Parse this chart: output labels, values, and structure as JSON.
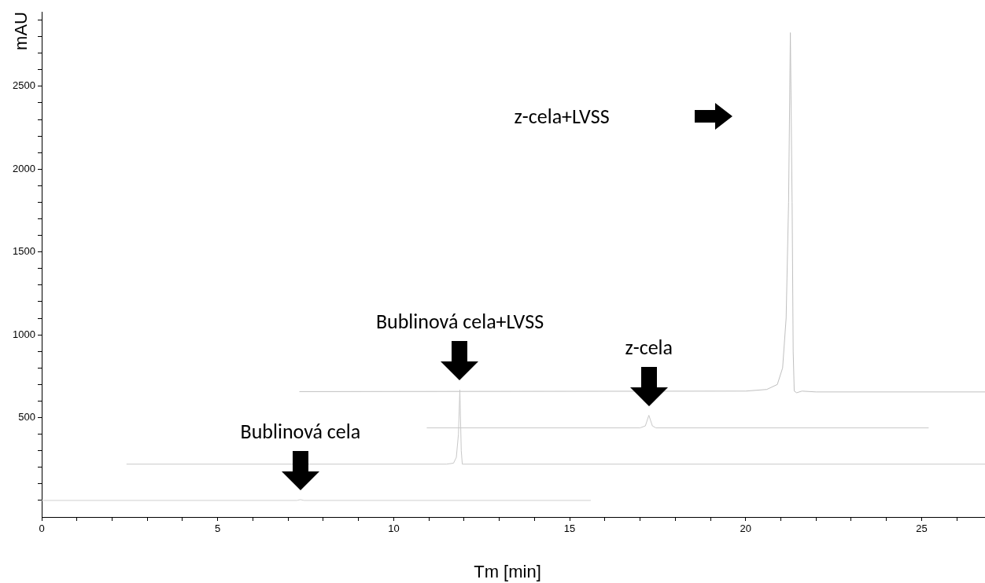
{
  "chart_data": {
    "type": "line",
    "xlabel": "Tm [min]",
    "ylabel": "mAU",
    "xlim": [
      0,
      26.8
    ],
    "ylim": [
      -100,
      2950
    ],
    "xticks": [
      0,
      {
        "value": 1,
        "label": null
      },
      {
        "value": 2,
        "label": null
      },
      {
        "value": 3,
        "label": null
      },
      {
        "value": 4,
        "label": null
      },
      5,
      {
        "value": 6,
        "label": null
      },
      {
        "value": 7,
        "label": null
      },
      {
        "value": 8,
        "label": null
      },
      {
        "value": 9,
        "label": null
      },
      10,
      {
        "value": 11,
        "label": null
      },
      {
        "value": 12,
        "label": null
      },
      {
        "value": 13,
        "label": null
      },
      {
        "value": 14,
        "label": null
      },
      15,
      {
        "value": 16,
        "label": null
      },
      {
        "value": 17,
        "label": null
      },
      {
        "value": 18,
        "label": null
      },
      {
        "value": 19,
        "label": null
      },
      20,
      {
        "value": 21,
        "label": null
      },
      {
        "value": 22,
        "label": null
      },
      {
        "value": 23,
        "label": null
      },
      {
        "value": 24,
        "label": null
      },
      25,
      {
        "value": 26,
        "label": null
      }
    ],
    "yticks": [
      {
        "value": 0,
        "label": null
      },
      {
        "value": 100,
        "label": null
      },
      {
        "value": 200,
        "label": null
      },
      {
        "value": 300,
        "label": null
      },
      {
        "value": 400,
        "label": null
      },
      500,
      {
        "value": 600,
        "label": null
      },
      {
        "value": 700,
        "label": null
      },
      {
        "value": 800,
        "label": null
      },
      {
        "value": 900,
        "label": null
      },
      1000,
      {
        "value": 1100,
        "label": null
      },
      {
        "value": 1200,
        "label": null
      },
      {
        "value": 1300,
        "label": null
      },
      {
        "value": 1400,
        "label": null
      },
      1500,
      {
        "value": 1600,
        "label": null
      },
      {
        "value": 1700,
        "label": null
      },
      {
        "value": 1800,
        "label": null
      },
      {
        "value": 1900,
        "label": null
      },
      2000,
      {
        "value": 2100,
        "label": null
      },
      {
        "value": 2200,
        "label": null
      },
      {
        "value": 2300,
        "label": null
      },
      {
        "value": 2400,
        "label": null
      },
      2500,
      {
        "value": 2600,
        "label": null
      },
      {
        "value": 2700,
        "label": null
      },
      {
        "value": 2800,
        "label": null
      },
      {
        "value": 2900,
        "label": null
      }
    ],
    "grid": false,
    "legend": false,
    "marker": "none",
    "line_style": "solid",
    "series": [
      {
        "color": "#d0d0d0",
        "x": [
          0,
          7.25,
          7.35,
          7.45,
          15.6
        ],
        "values": [
          0,
          0,
          5,
          0,
          0
        ]
      },
      {
        "color": "#c8c8c8",
        "x": [
          2.41,
          11.5,
          11.7,
          11.78,
          11.84,
          11.88,
          11.92,
          11.95,
          26.8
        ],
        "values": [
          219,
          219,
          225,
          260,
          400,
          667,
          300,
          219,
          219
        ]
      },
      {
        "color": "#c8c8c8",
        "x": [
          10.94,
          17.0,
          17.15,
          17.25,
          17.35,
          17.45,
          25.2
        ],
        "values": [
          438,
          438,
          450,
          514,
          450,
          438,
          438
        ]
      },
      {
        "color": "#c0c0c0",
        "x": [
          7.32,
          20.0,
          20.6,
          20.9,
          21.05,
          21.15,
          21.22,
          21.27,
          21.32,
          21.35,
          21.38,
          21.45,
          21.6,
          22,
          26.8
        ],
        "values": [
          657,
          660,
          670,
          700,
          800,
          1100,
          1800,
          2824,
          1800,
          900,
          660,
          650,
          660,
          655,
          655
        ]
      }
    ],
    "annotations": [
      {
        "text": "Bublinová cela",
        "x": 7.35,
        "y": 5
      },
      {
        "text": "Bublinová cela+LVSS",
        "x": 11.88,
        "y": 667
      },
      {
        "text": "z-cela",
        "x": 17.25,
        "y": 514
      },
      "z-cela+LVSS"
    ]
  }
}
